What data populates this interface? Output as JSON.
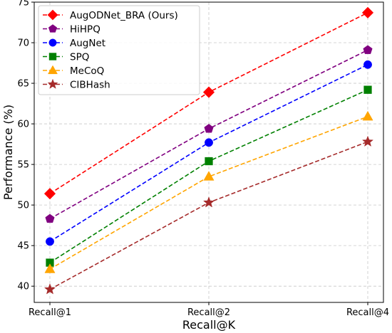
{
  "chart_data": {
    "type": "line",
    "xlabel": "Recall@K",
    "ylabel": "Performance (%)",
    "categories": [
      "Recall@1",
      "Recall@2",
      "Recall@4"
    ],
    "ylim": [
      38,
      75
    ],
    "yticks": [
      40,
      45,
      50,
      55,
      60,
      65,
      70,
      75
    ],
    "grid": true,
    "legend_position": "top-left",
    "series": [
      {
        "name": "AugODNet_BRA (Ours)",
        "values": [
          51.4,
          63.9,
          73.7
        ],
        "color": "#ff0000",
        "marker": "diamond"
      },
      {
        "name": "HiHPQ",
        "values": [
          48.3,
          59.4,
          69.1
        ],
        "color": "#800080",
        "marker": "pentagon"
      },
      {
        "name": "AugNet",
        "values": [
          45.5,
          57.7,
          67.3
        ],
        "color": "#0000ff",
        "marker": "circle"
      },
      {
        "name": "SPQ",
        "values": [
          42.9,
          55.4,
          64.2
        ],
        "color": "#008000",
        "marker": "square"
      },
      {
        "name": "MeCoQ",
        "values": [
          42.1,
          53.5,
          60.9
        ],
        "color": "#ffa500",
        "marker": "triangle"
      },
      {
        "name": "CIBHash",
        "values": [
          39.6,
          50.3,
          57.8
        ],
        "color": "#a52a2a",
        "marker": "star"
      }
    ]
  }
}
